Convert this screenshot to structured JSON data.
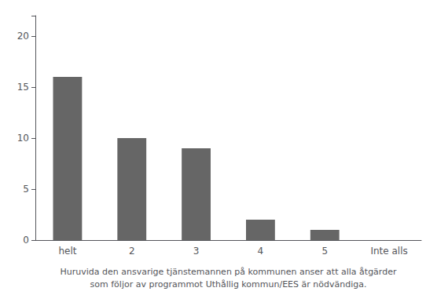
{
  "chart_data": {
    "type": "bar",
    "xlabel": "Huruvida den ansvarige tjänstemannen på kommunen anser att alla åtgärder\nsom följor av programmot Uthållig kommun/EES är nödvändiga.",
    "categories": [
      "helt",
      "2",
      "3",
      "4",
      "5",
      "Inte alls"
    ],
    "values": [
      16,
      10,
      9,
      2,
      1,
      0
    ],
    "color": "#666666",
    "ylim": [
      0,
      22
    ],
    "yticks": [
      0,
      5,
      10,
      15,
      20
    ],
    "grid": false
  }
}
